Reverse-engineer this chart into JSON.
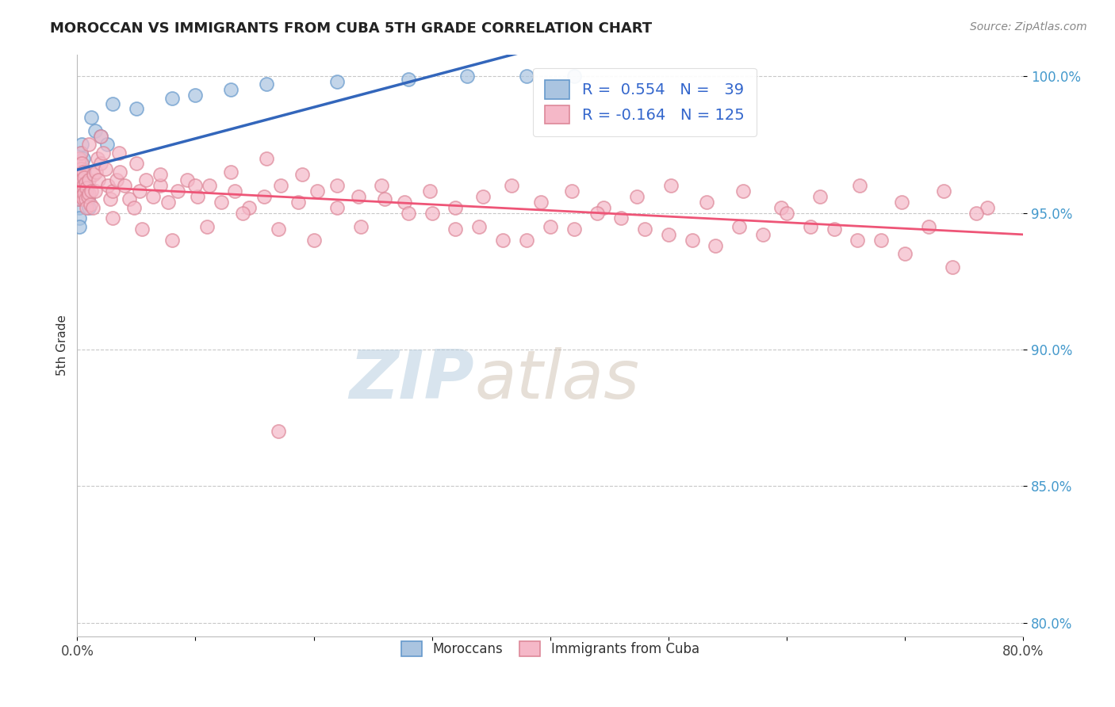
{
  "title": "MOROCCAN VS IMMIGRANTS FROM CUBA 5TH GRADE CORRELATION CHART",
  "source": "Source: ZipAtlas.com",
  "ylabel": "5th Grade",
  "xlim": [
    0.0,
    0.8
  ],
  "ylim": [
    0.795,
    1.008
  ],
  "y_ticks": [
    0.8,
    0.85,
    0.9,
    0.95,
    1.0
  ],
  "y_tick_labels": [
    "80.0%",
    "85.0%",
    "90.0%",
    "95.0%",
    "100.0%"
  ],
  "grid_color": "#c8c8c8",
  "background_color": "#ffffff",
  "watermark_zip": "ZIP",
  "watermark_atlas": "atlas",
  "watermark_color_zip": "#b8cfe0",
  "watermark_color_atlas": "#c8b8a8",
  "moroccan_color": "#aac4e0",
  "moroccan_edge": "#6699cc",
  "cuba_color": "#f5b8c8",
  "cuba_edge": "#dd8899",
  "R_moroccan": 0.554,
  "N_moroccan": 39,
  "R_cuba": -0.164,
  "N_cuba": 125,
  "line_moroccan_color": "#3366bb",
  "line_cuba_color": "#ee5577",
  "legend_label_color": "#3366cc",
  "tick_color": "#4499cc",
  "moroccan_x": [
    0.001,
    0.001,
    0.001,
    0.001,
    0.002,
    0.002,
    0.002,
    0.002,
    0.002,
    0.002,
    0.003,
    0.003,
    0.003,
    0.003,
    0.004,
    0.004,
    0.004,
    0.005,
    0.005,
    0.006,
    0.007,
    0.008,
    0.009,
    0.01,
    0.012,
    0.015,
    0.02,
    0.025,
    0.03,
    0.05,
    0.08,
    0.1,
    0.13,
    0.16,
    0.22,
    0.28,
    0.33,
    0.38,
    0.42
  ],
  "moroccan_y": [
    0.97,
    0.965,
    0.96,
    0.955,
    0.968,
    0.962,
    0.958,
    0.952,
    0.948,
    0.945,
    0.972,
    0.966,
    0.96,
    0.955,
    0.975,
    0.968,
    0.96,
    0.97,
    0.963,
    0.965,
    0.96,
    0.958,
    0.955,
    0.952,
    0.985,
    0.98,
    0.978,
    0.975,
    0.99,
    0.988,
    0.992,
    0.993,
    0.995,
    0.997,
    0.998,
    0.999,
    1.0,
    1.0,
    1.0
  ],
  "cuba_x": [
    0.001,
    0.001,
    0.001,
    0.002,
    0.002,
    0.002,
    0.003,
    0.003,
    0.003,
    0.004,
    0.004,
    0.004,
    0.005,
    0.005,
    0.005,
    0.006,
    0.006,
    0.007,
    0.007,
    0.008,
    0.008,
    0.009,
    0.01,
    0.01,
    0.011,
    0.012,
    0.013,
    0.014,
    0.015,
    0.016,
    0.017,
    0.018,
    0.02,
    0.022,
    0.024,
    0.026,
    0.028,
    0.03,
    0.033,
    0.036,
    0.04,
    0.044,
    0.048,
    0.053,
    0.058,
    0.064,
    0.07,
    0.077,
    0.085,
    0.093,
    0.102,
    0.112,
    0.122,
    0.133,
    0.145,
    0.158,
    0.172,
    0.187,
    0.203,
    0.22,
    0.238,
    0.257,
    0.277,
    0.298,
    0.32,
    0.343,
    0.367,
    0.392,
    0.418,
    0.445,
    0.473,
    0.502,
    0.532,
    0.563,
    0.595,
    0.628,
    0.662,
    0.697,
    0.733,
    0.77,
    0.03,
    0.055,
    0.08,
    0.11,
    0.14,
    0.17,
    0.2,
    0.24,
    0.28,
    0.32,
    0.36,
    0.4,
    0.44,
    0.48,
    0.52,
    0.56,
    0.6,
    0.64,
    0.68,
    0.72,
    0.76,
    0.01,
    0.02,
    0.035,
    0.05,
    0.07,
    0.1,
    0.13,
    0.16,
    0.19,
    0.22,
    0.26,
    0.3,
    0.34,
    0.38,
    0.42,
    0.46,
    0.5,
    0.54,
    0.58,
    0.62,
    0.66,
    0.7,
    0.74,
    0.17
  ],
  "cuba_y": [
    0.968,
    0.962,
    0.955,
    0.97,
    0.965,
    0.958,
    0.972,
    0.966,
    0.96,
    0.968,
    0.962,
    0.956,
    0.965,
    0.96,
    0.955,
    0.963,
    0.957,
    0.961,
    0.955,
    0.959,
    0.952,
    0.956,
    0.962,
    0.957,
    0.953,
    0.958,
    0.952,
    0.964,
    0.958,
    0.965,
    0.97,
    0.962,
    0.968,
    0.972,
    0.966,
    0.96,
    0.955,
    0.958,
    0.962,
    0.965,
    0.96,
    0.955,
    0.952,
    0.958,
    0.962,
    0.956,
    0.96,
    0.954,
    0.958,
    0.962,
    0.956,
    0.96,
    0.954,
    0.958,
    0.952,
    0.956,
    0.96,
    0.954,
    0.958,
    0.952,
    0.956,
    0.96,
    0.954,
    0.958,
    0.952,
    0.956,
    0.96,
    0.954,
    0.958,
    0.952,
    0.956,
    0.96,
    0.954,
    0.958,
    0.952,
    0.956,
    0.96,
    0.954,
    0.958,
    0.952,
    0.948,
    0.944,
    0.94,
    0.945,
    0.95,
    0.944,
    0.94,
    0.945,
    0.95,
    0.944,
    0.94,
    0.945,
    0.95,
    0.944,
    0.94,
    0.945,
    0.95,
    0.944,
    0.94,
    0.945,
    0.95,
    0.975,
    0.978,
    0.972,
    0.968,
    0.964,
    0.96,
    0.965,
    0.97,
    0.964,
    0.96,
    0.955,
    0.95,
    0.945,
    0.94,
    0.944,
    0.948,
    0.942,
    0.938,
    0.942,
    0.945,
    0.94,
    0.935,
    0.93,
    0.87
  ]
}
